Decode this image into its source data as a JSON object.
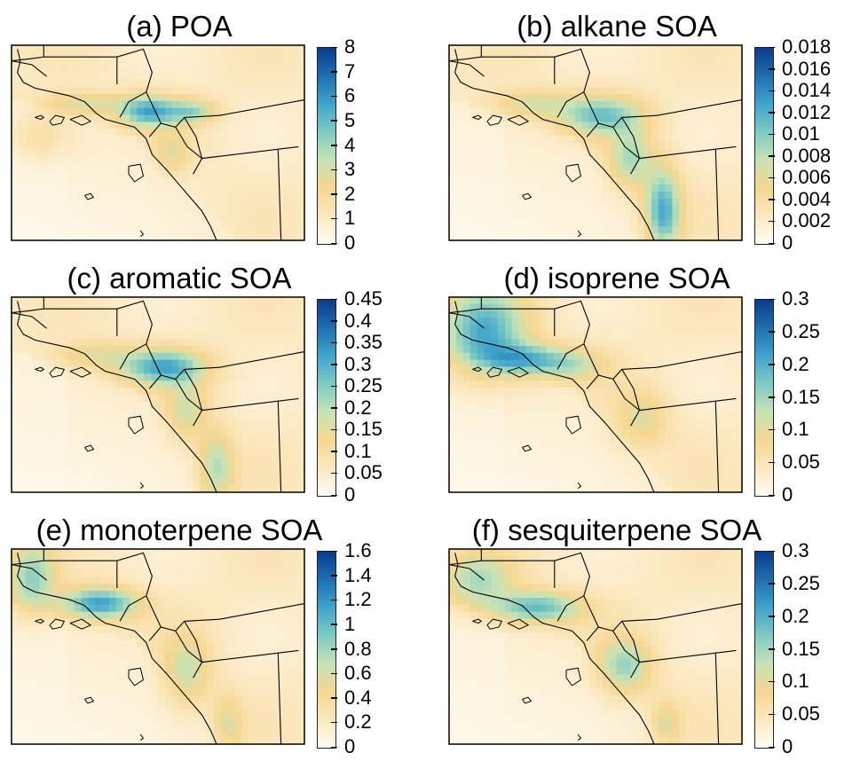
{
  "panels": [
    {
      "title": "(a) POA",
      "col": 0,
      "row": 0,
      "pattern": "poa",
      "ticks": [
        "0",
        "1",
        "2",
        "3",
        "4",
        "5",
        "6",
        "7",
        "8"
      ]
    },
    {
      "title": "(b) alkane SOA",
      "col": 1,
      "row": 0,
      "pattern": "alkane",
      "ticks": [
        "0",
        "0.002",
        "0.004",
        "0.006",
        "0.008",
        "0.01",
        "0.012",
        "0.014",
        "0.016",
        "0.018"
      ]
    },
    {
      "title": "(c) aromatic SOA",
      "col": 0,
      "row": 1,
      "pattern": "aromatic",
      "ticks": [
        "0",
        "0.05",
        "0.1",
        "0.15",
        "0.2",
        "0.25",
        "0.3",
        "0.35",
        "0.4",
        "0.45"
      ]
    },
    {
      "title": "(d) isoprene SOA",
      "col": 1,
      "row": 1,
      "pattern": "isoprene",
      "ticks": [
        "0",
        "0.05",
        "0.1",
        "0.15",
        "0.2",
        "0.25",
        "0.3"
      ]
    },
    {
      "title": "(e) monoterpene SOA",
      "col": 0,
      "row": 2,
      "pattern": "monoterpene",
      "ticks": [
        "0",
        "0.2",
        "0.4",
        "0.6",
        "0.8",
        "1",
        "1.2",
        "1.4",
        "1.6"
      ]
    },
    {
      "title": "(f) sesquiterpene SOA",
      "col": 1,
      "row": 2,
      "pattern": "sesquiterpene",
      "ticks": [
        "0",
        "0.05",
        "0.1",
        "0.15",
        "0.2",
        "0.25",
        "0.3"
      ]
    }
  ],
  "colormap": [
    "#fffdf5",
    "#fbe8bf",
    "#f6d791",
    "#c7e3b6",
    "#7ecbc3",
    "#3fa4cc",
    "#1f6fb0",
    "#0c3c8c"
  ],
  "chart_data": [
    {
      "type": "heatmap",
      "title": "(a) POA",
      "colorbar_ticks": [
        0,
        1,
        2,
        3,
        4,
        5,
        6,
        7,
        8
      ],
      "range": [
        0,
        8
      ]
    },
    {
      "type": "heatmap",
      "title": "(b) alkane SOA",
      "colorbar_ticks": [
        0,
        0.002,
        0.004,
        0.006,
        0.008,
        0.01,
        0.012,
        0.014,
        0.016,
        0.018
      ],
      "range": [
        0,
        0.018
      ]
    },
    {
      "type": "heatmap",
      "title": "(c) aromatic SOA",
      "colorbar_ticks": [
        0,
        0.05,
        0.1,
        0.15,
        0.2,
        0.25,
        0.3,
        0.35,
        0.4,
        0.45
      ],
      "range": [
        0,
        0.45
      ]
    },
    {
      "type": "heatmap",
      "title": "(d) isoprene SOA",
      "colorbar_ticks": [
        0,
        0.05,
        0.1,
        0.15,
        0.2,
        0.25,
        0.3
      ],
      "range": [
        0,
        0.3
      ]
    },
    {
      "type": "heatmap",
      "title": "(e) monoterpene SOA",
      "colorbar_ticks": [
        0,
        0.2,
        0.4,
        0.6,
        0.8,
        1,
        1.2,
        1.4,
        1.6
      ],
      "range": [
        0,
        1.6
      ]
    },
    {
      "type": "heatmap",
      "title": "(f) sesquiterpene SOA",
      "colorbar_ticks": [
        0,
        0.05,
        0.1,
        0.15,
        0.2,
        0.25,
        0.3
      ],
      "range": [
        0,
        0.3
      ]
    }
  ]
}
